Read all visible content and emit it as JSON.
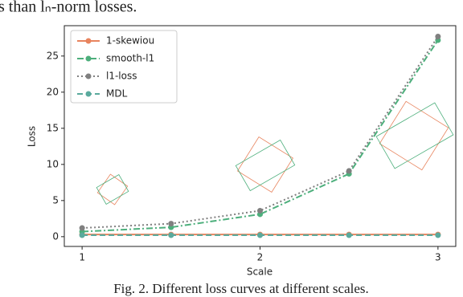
{
  "header_text": "s than lₙ-norm losses.",
  "caption": "Fig. 2. Different loss curves at different scales.",
  "chart_data": {
    "type": "line",
    "xlabel": "Scale",
    "ylabel": "Loss",
    "x": [
      1,
      1.5,
      2,
      2.5,
      3
    ],
    "series": [
      {
        "name": "1-skewiou",
        "color": "#e8845e",
        "linestyle": "solid",
        "values": [
          0.3,
          0.3,
          0.3,
          0.3,
          0.3
        ]
      },
      {
        "name": "smooth-l1",
        "color": "#4daf7c",
        "linestyle": "dashdot",
        "values": [
          0.7,
          1.3,
          3.1,
          8.7,
          27.2
        ]
      },
      {
        "name": "l1-loss",
        "color": "#808080",
        "linestyle": "dotted",
        "values": [
          1.2,
          1.8,
          3.6,
          9.1,
          27.7
        ]
      },
      {
        "name": "MDL",
        "color": "#5aaa9d",
        "linestyle": "dashed",
        "values": [
          0.2,
          0.2,
          0.2,
          0.2,
          0.2
        ]
      }
    ],
    "xlim": [
      0.9,
      3.1
    ],
    "ylim": [
      -1.35,
      29.2
    ],
    "xticks": [
      1,
      2,
      3
    ],
    "yticks": [
      0,
      5,
      10,
      15,
      20,
      25
    ],
    "legend": "upper left"
  }
}
